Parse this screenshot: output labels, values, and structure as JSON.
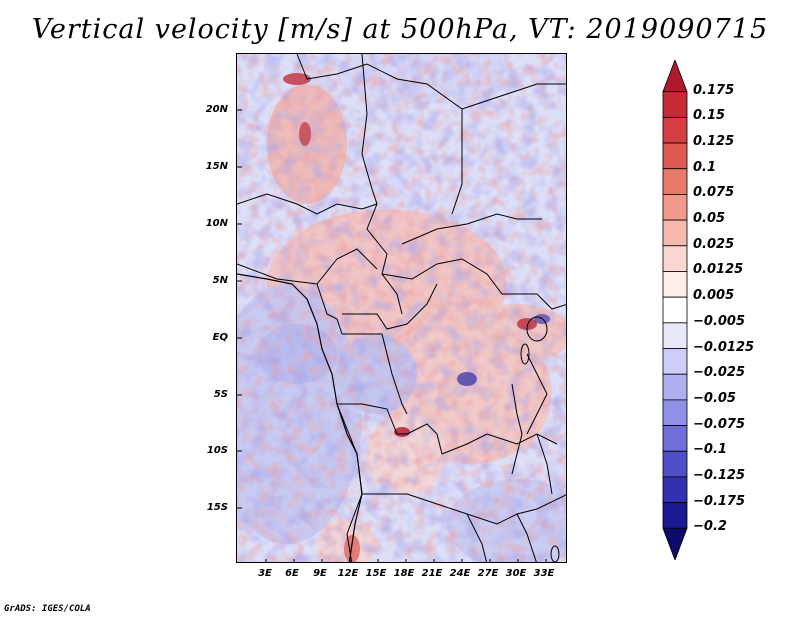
{
  "title": "Vertical velocity [m/s] at 500hPa, VT: 2019090715",
  "credit": "GrADS: IGES/COLA",
  "map": {
    "latitude_labels": [
      "20N",
      "15N",
      "10N",
      "5N",
      "EQ",
      "5S",
      "10S",
      "15S"
    ],
    "longitude_labels": [
      "3E",
      "6E",
      "9E",
      "12E",
      "15E",
      "18E",
      "21E",
      "24E",
      "27E",
      "30E",
      "33E"
    ]
  },
  "colorbar": {
    "levels": [
      "0.175",
      "0.15",
      "0.125",
      "0.1",
      "0.075",
      "0.05",
      "0.025",
      "0.0125",
      "0.005",
      "−0.005",
      "−0.0125",
      "−0.025",
      "−0.05",
      "−0.075",
      "−0.1",
      "−0.125",
      "−0.175",
      "−0.2"
    ],
    "colors": [
      "#b2182b",
      "#c62a36",
      "#d63f42",
      "#e05a52",
      "#e87a6c",
      "#f09a8c",
      "#f6bab0",
      "#fad6d0",
      "#fdeeea",
      "#ffffff",
      "#e8e8fb",
      "#cdcdf6",
      "#b0b0f0",
      "#9090e6",
      "#6f6fd8",
      "#4f4fc8",
      "#3232b0",
      "#1a1a92",
      "#0c0c6e"
    ]
  }
}
